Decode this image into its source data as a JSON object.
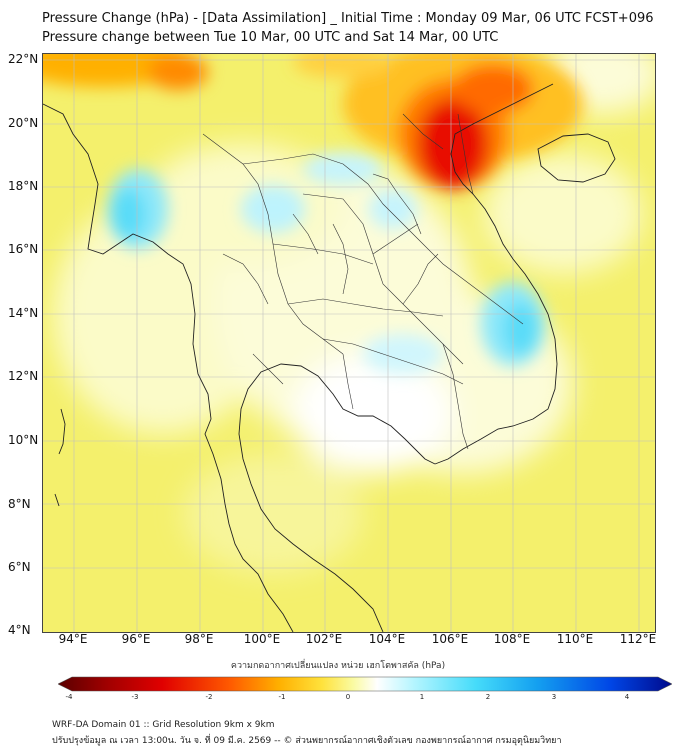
{
  "title_line1": "Pressure Change (hPa) - [Data Assimilation] _ Initial Time : Monday 09 Mar, 06 UTC FCST+096",
  "title_line2": "Pressure change between Tue 10 Mar, 00 UTC and Sat 14 Mar, 00 UTC",
  "lat_labels": [
    "22°N",
    "20°N",
    "18°N",
    "16°N",
    "14°N",
    "12°N",
    "10°N",
    "8°N",
    "6°N",
    "4°N"
  ],
  "lon_labels": [
    "94°E",
    "96°E",
    "98°E",
    "100°E",
    "102°E",
    "104°E",
    "106°E",
    "108°E",
    "110°E",
    "112°E"
  ],
  "colorbar": {
    "title": "ความกดอากาศเปลี่ยนแปลง หน่วย เฮกโตพาสคัล (hPa)",
    "ticks": [
      "-4",
      "-3",
      "-2",
      "-1",
      "0",
      "1",
      "2",
      "3",
      "4"
    ],
    "range": [
      -4,
      4
    ],
    "colors": [
      "#5a0000",
      "#a00000",
      "#e00000",
      "#ff5a00",
      "#ffb000",
      "#ffe23c",
      "#fafaa0",
      "#ffffff",
      "#b4f5ff",
      "#46dcfa",
      "#14a0f0",
      "#0046e6",
      "#000a8c"
    ]
  },
  "map": {
    "region": "Mainland Southeast Asia (Thailand, Myanmar, Laos, Cambodia, Vietnam, Malaysia)",
    "lat_range": [
      4,
      22
    ],
    "lon_range": [
      93,
      112.5
    ],
    "colors": {
      "land_border": "#222222",
      "field_base": "#f3f06a",
      "high_positive": "#46dcfa",
      "strong_negative": "#e00000"
    }
  },
  "footer_line1": "WRF-DA Domain 01 :: Grid Resolution 9km x 9km",
  "footer_line2": "ปรับปรุงข้อมูล ณ เวลา 13:00น. วัน จ. ที่ 09 มี.ค. 2569 -- © ส่วนพยากรณ์อากาศเชิงตัวเลข กองพยากรณ์อากาศ กรมอุตุนิยมวิทยา"
}
